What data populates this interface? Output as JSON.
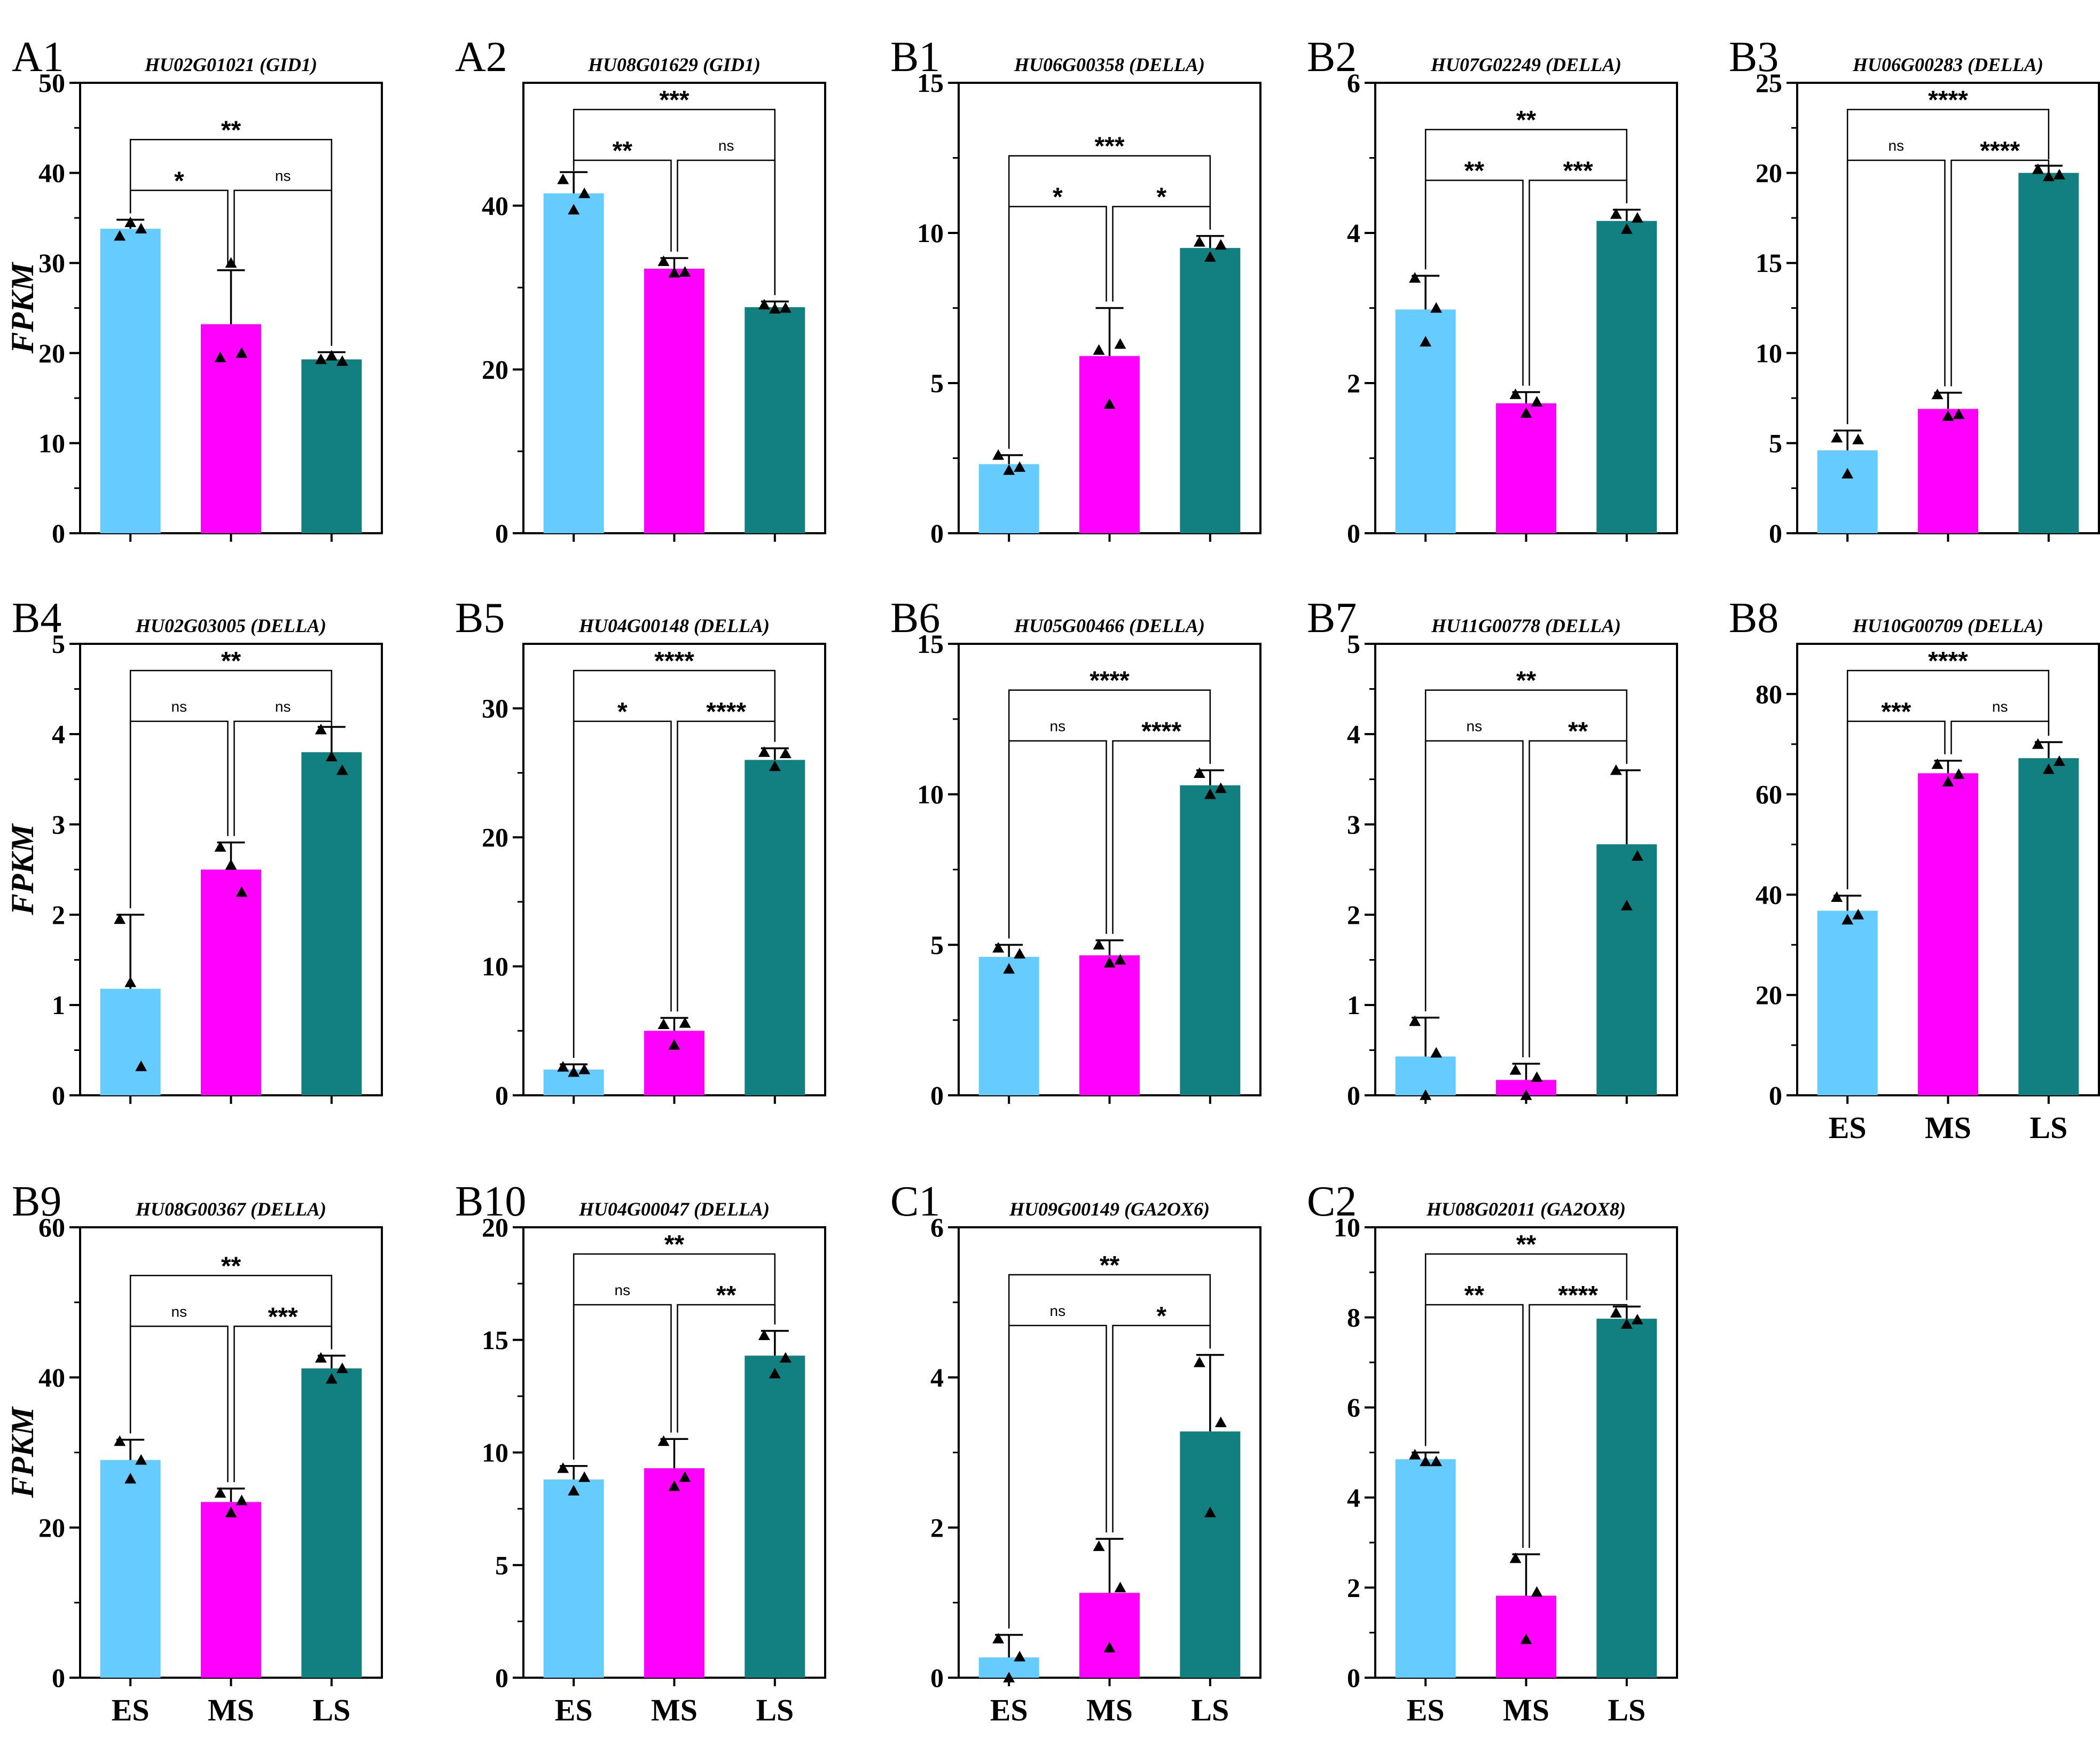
{
  "figure": {
    "ylabel": "FPKM",
    "colors": {
      "ES": "#66CCFF",
      "MS": "#FF00FF",
      "LS": "#128080",
      "axis": "#000000"
    }
  },
  "chart_data": [
    {
      "panel": "A1",
      "title": "HU02G01021 (GID1)",
      "type": "bar",
      "categories": [
        "ES",
        "MS",
        "LS"
      ],
      "values": [
        33.8,
        23.2,
        19.3
      ],
      "errors": [
        1.0,
        6.0,
        0.8
      ],
      "points": [
        [
          33,
          34.5,
          33.8
        ],
        [
          19.5,
          30,
          20
        ],
        [
          19.3,
          19.7,
          19.1
        ]
      ],
      "ylim": [
        0,
        50
      ],
      "yticks": [
        0,
        10,
        20,
        30,
        40,
        50
      ],
      "ylabel": "FPKM",
      "show_xlabels": false,
      "comparisons": [
        {
          "pair": [
            "ES",
            "MS"
          ],
          "label": "*"
        },
        {
          "pair": [
            "MS",
            "LS"
          ],
          "label": "ns"
        },
        {
          "pair": [
            "ES",
            "LS"
          ],
          "label": "**"
        }
      ]
    },
    {
      "panel": "A2",
      "title": "HU08G01629 (GID1)",
      "type": "bar",
      "categories": [
        "ES",
        "MS",
        "LS"
      ],
      "values": [
        41.5,
        32.3,
        27.6
      ],
      "errors": [
        2.6,
        1.3,
        0.7
      ],
      "points": [
        [
          43.2,
          39.5,
          41.5
        ],
        [
          33.2,
          31.8,
          31.9
        ],
        [
          27.9,
          27.4,
          27.5
        ]
      ],
      "ylim": [
        0,
        55
      ],
      "yticks": [
        0,
        20,
        40
      ],
      "ylabel": "",
      "show_xlabels": false,
      "comparisons": [
        {
          "pair": [
            "ES",
            "MS"
          ],
          "label": "**"
        },
        {
          "pair": [
            "MS",
            "LS"
          ],
          "label": "ns"
        },
        {
          "pair": [
            "ES",
            "LS"
          ],
          "label": "***"
        }
      ]
    },
    {
      "panel": "B1",
      "title": "HU06G00358 (DELLA)",
      "type": "bar",
      "categories": [
        "ES",
        "MS",
        "LS"
      ],
      "values": [
        2.3,
        5.9,
        9.5
      ],
      "errors": [
        0.3,
        1.6,
        0.4
      ],
      "points": [
        [
          2.6,
          2.1,
          2.2
        ],
        [
          6.1,
          4.3,
          6.3
        ],
        [
          9.7,
          9.2,
          9.6
        ]
      ],
      "ylim": [
        0,
        15
      ],
      "yticks": [
        0,
        5,
        10,
        15
      ],
      "ylabel": "",
      "show_xlabels": false,
      "comparisons": [
        {
          "pair": [
            "ES",
            "MS"
          ],
          "label": "*"
        },
        {
          "pair": [
            "MS",
            "LS"
          ],
          "label": "*"
        },
        {
          "pair": [
            "ES",
            "LS"
          ],
          "label": "***"
        }
      ]
    },
    {
      "panel": "B2",
      "title": "HU07G02249 (DELLA)",
      "type": "bar",
      "categories": [
        "ES",
        "MS",
        "LS"
      ],
      "values": [
        2.98,
        1.73,
        4.16
      ],
      "errors": [
        0.45,
        0.15,
        0.15
      ],
      "points": [
        [
          3.4,
          2.55,
          3.0
        ],
        [
          1.85,
          1.6,
          1.75
        ],
        [
          4.25,
          4.05,
          4.2
        ]
      ],
      "ylim": [
        0,
        6
      ],
      "yticks": [
        0,
        2,
        4,
        6
      ],
      "ylabel": "",
      "show_xlabels": false,
      "comparisons": [
        {
          "pair": [
            "ES",
            "MS"
          ],
          "label": "**"
        },
        {
          "pair": [
            "MS",
            "LS"
          ],
          "label": "***"
        },
        {
          "pair": [
            "ES",
            "LS"
          ],
          "label": "**"
        }
      ]
    },
    {
      "panel": "B3",
      "title": "HU06G00283 (DELLA)",
      "type": "bar",
      "categories": [
        "ES",
        "MS",
        "LS"
      ],
      "values": [
        4.6,
        6.9,
        20.0
      ],
      "errors": [
        1.1,
        0.9,
        0.4
      ],
      "points": [
        [
          5.3,
          3.3,
          5.2
        ],
        [
          7.7,
          6.5,
          6.6
        ],
        [
          20.2,
          19.8,
          19.9
        ]
      ],
      "ylim": [
        0,
        25
      ],
      "yticks": [
        0,
        5,
        10,
        15,
        20,
        25
      ],
      "ylabel": "",
      "show_xlabels": false,
      "comparisons": [
        {
          "pair": [
            "ES",
            "MS"
          ],
          "label": "ns"
        },
        {
          "pair": [
            "MS",
            "LS"
          ],
          "label": "****"
        },
        {
          "pair": [
            "ES",
            "LS"
          ],
          "label": "****"
        }
      ]
    },
    {
      "panel": "B4",
      "title": "HU02G03005 (DELLA)",
      "type": "bar",
      "categories": [
        "ES",
        "MS",
        "LS"
      ],
      "values": [
        1.18,
        2.5,
        3.8
      ],
      "errors": [
        0.82,
        0.3,
        0.28
      ],
      "points": [
        [
          1.95,
          1.25,
          0.32
        ],
        [
          2.75,
          2.55,
          2.25
        ],
        [
          4.05,
          3.75,
          3.6
        ]
      ],
      "ylim": [
        0,
        5
      ],
      "yticks": [
        0,
        1,
        2,
        3,
        4,
        5
      ],
      "ylabel": "FPKM",
      "show_xlabels": false,
      "comparisons": [
        {
          "pair": [
            "ES",
            "MS"
          ],
          "label": "ns"
        },
        {
          "pair": [
            "MS",
            "LS"
          ],
          "label": "ns"
        },
        {
          "pair": [
            "ES",
            "LS"
          ],
          "label": "**"
        }
      ]
    },
    {
      "panel": "B5",
      "title": "HU04G00148 (DELLA)",
      "type": "bar",
      "categories": [
        "ES",
        "MS",
        "LS"
      ],
      "values": [
        2.0,
        5.0,
        26.0
      ],
      "errors": [
        0.4,
        1.0,
        0.9
      ],
      "points": [
        [
          2.2,
          1.8,
          2.0
        ],
        [
          5.5,
          3.9,
          5.6
        ],
        [
          26.6,
          25.5,
          26.5
        ]
      ],
      "ylim": [
        0,
        35
      ],
      "yticks": [
        0,
        10,
        20,
        30
      ],
      "ylabel": "",
      "show_xlabels": false,
      "comparisons": [
        {
          "pair": [
            "ES",
            "MS"
          ],
          "label": "*"
        },
        {
          "pair": [
            "MS",
            "LS"
          ],
          "label": "****"
        },
        {
          "pair": [
            "ES",
            "LS"
          ],
          "label": "****"
        }
      ]
    },
    {
      "panel": "B6",
      "title": "HU05G00466 (DELLA)",
      "type": "bar",
      "categories": [
        "ES",
        "MS",
        "LS"
      ],
      "values": [
        4.6,
        4.65,
        10.3
      ],
      "errors": [
        0.4,
        0.5,
        0.5
      ],
      "points": [
        [
          4.9,
          4.2,
          4.7
        ],
        [
          5.0,
          4.4,
          4.5
        ],
        [
          10.7,
          10.0,
          10.2
        ]
      ],
      "ylim": [
        0,
        15
      ],
      "yticks": [
        0,
        5,
        10,
        15
      ],
      "ylabel": "",
      "show_xlabels": false,
      "comparisons": [
        {
          "pair": [
            "ES",
            "MS"
          ],
          "label": "ns"
        },
        {
          "pair": [
            "MS",
            "LS"
          ],
          "label": "****"
        },
        {
          "pair": [
            "ES",
            "LS"
          ],
          "label": "****"
        }
      ]
    },
    {
      "panel": "B7",
      "title": "HU11G00778 (DELLA)",
      "type": "bar",
      "categories": [
        "ES",
        "MS",
        "LS"
      ],
      "values": [
        0.43,
        0.17,
        2.78
      ],
      "errors": [
        0.43,
        0.18,
        0.82
      ],
      "points": [
        [
          0.82,
          0.0,
          0.47
        ],
        [
          0.28,
          0.0,
          0.2
        ],
        [
          3.6,
          2.1,
          2.65
        ]
      ],
      "ylim": [
        0,
        5
      ],
      "yticks": [
        0,
        1,
        2,
        3,
        4,
        5
      ],
      "ylabel": "",
      "show_xlabels": false,
      "comparisons": [
        {
          "pair": [
            "ES",
            "MS"
          ],
          "label": "ns"
        },
        {
          "pair": [
            "MS",
            "LS"
          ],
          "label": "**"
        },
        {
          "pair": [
            "ES",
            "LS"
          ],
          "label": "**"
        }
      ]
    },
    {
      "panel": "B8",
      "title": "HU10G00709 (DELLA)",
      "type": "bar",
      "categories": [
        "ES",
        "MS",
        "LS"
      ],
      "values": [
        36.8,
        64.2,
        67.2
      ],
      "errors": [
        3.0,
        2.5,
        3.2
      ],
      "points": [
        [
          39.5,
          35.0,
          36.0
        ],
        [
          66.0,
          62.5,
          64.0
        ],
        [
          70.0,
          65.0,
          66.6
        ]
      ],
      "ylim": [
        0,
        90
      ],
      "yticks": [
        0,
        20,
        40,
        60,
        80
      ],
      "ylabel": "",
      "show_xlabels": true,
      "comparisons": [
        {
          "pair": [
            "ES",
            "MS"
          ],
          "label": "***"
        },
        {
          "pair": [
            "MS",
            "LS"
          ],
          "label": "ns"
        },
        {
          "pair": [
            "ES",
            "LS"
          ],
          "label": "****"
        }
      ]
    },
    {
      "panel": "B9",
      "title": "HU08G00367 (DELLA)",
      "type": "bar",
      "categories": [
        "ES",
        "MS",
        "LS"
      ],
      "values": [
        29.0,
        23.4,
        41.2
      ],
      "errors": [
        2.7,
        1.8,
        1.7
      ],
      "points": [
        [
          31.5,
          26.5,
          29.0
        ],
        [
          24.6,
          22.0,
          23.6
        ],
        [
          42.6,
          39.8,
          41.2
        ]
      ],
      "ylim": [
        0,
        60
      ],
      "yticks": [
        0,
        20,
        40,
        60
      ],
      "ylabel": "FPKM",
      "show_xlabels": true,
      "comparisons": [
        {
          "pair": [
            "ES",
            "MS"
          ],
          "label": "ns"
        },
        {
          "pair": [
            "MS",
            "LS"
          ],
          "label": "***"
        },
        {
          "pair": [
            "ES",
            "LS"
          ],
          "label": "**"
        }
      ]
    },
    {
      "panel": "B10",
      "title": "HU04G00047 (DELLA)",
      "type": "bar",
      "categories": [
        "ES",
        "MS",
        "LS"
      ],
      "values": [
        8.8,
        9.3,
        14.3
      ],
      "errors": [
        0.6,
        1.3,
        1.1
      ],
      "points": [
        [
          9.3,
          8.3,
          8.9
        ],
        [
          10.5,
          8.5,
          8.9
        ],
        [
          15.2,
          13.5,
          14.2
        ]
      ],
      "ylim": [
        0,
        20
      ],
      "yticks": [
        0,
        5,
        10,
        15,
        20
      ],
      "ylabel": "",
      "show_xlabels": true,
      "comparisons": [
        {
          "pair": [
            "ES",
            "MS"
          ],
          "label": "ns"
        },
        {
          "pair": [
            "MS",
            "LS"
          ],
          "label": "**"
        },
        {
          "pair": [
            "ES",
            "LS"
          ],
          "label": "**"
        }
      ]
    },
    {
      "panel": "C1",
      "title": "HU09G00149 (GA2OX6)",
      "type": "bar",
      "categories": [
        "ES",
        "MS",
        "LS"
      ],
      "values": [
        0.27,
        1.13,
        3.28
      ],
      "errors": [
        0.3,
        0.72,
        1.02
      ],
      "points": [
        [
          0.52,
          0.0,
          0.28
        ],
        [
          1.75,
          0.4,
          1.2
        ],
        [
          4.2,
          2.2,
          3.4
        ]
      ],
      "ylim": [
        0,
        6
      ],
      "yticks": [
        0,
        2,
        4,
        6
      ],
      "ylabel": "",
      "show_xlabels": true,
      "comparisons": [
        {
          "pair": [
            "ES",
            "MS"
          ],
          "label": "ns"
        },
        {
          "pair": [
            "MS",
            "LS"
          ],
          "label": "*"
        },
        {
          "pair": [
            "ES",
            "LS"
          ],
          "label": "**"
        }
      ]
    },
    {
      "panel": "C2",
      "title": "HU08G02011 (GA2OX8)",
      "type": "bar",
      "categories": [
        "ES",
        "MS",
        "LS"
      ],
      "values": [
        4.85,
        1.82,
        7.97
      ],
      "errors": [
        0.15,
        0.92,
        0.27
      ],
      "points": [
        [
          4.95,
          4.8,
          4.8
        ],
        [
          2.65,
          0.85,
          1.9
        ],
        [
          8.1,
          7.85,
          7.95
        ]
      ],
      "ylim": [
        0,
        10
      ],
      "yticks": [
        0,
        2,
        4,
        6,
        8,
        10
      ],
      "ylabel": "",
      "show_xlabels": true,
      "comparisons": [
        {
          "pair": [
            "ES",
            "MS"
          ],
          "label": "**"
        },
        {
          "pair": [
            "MS",
            "LS"
          ],
          "label": "****"
        },
        {
          "pair": [
            "ES",
            "LS"
          ],
          "label": "**"
        }
      ]
    }
  ]
}
